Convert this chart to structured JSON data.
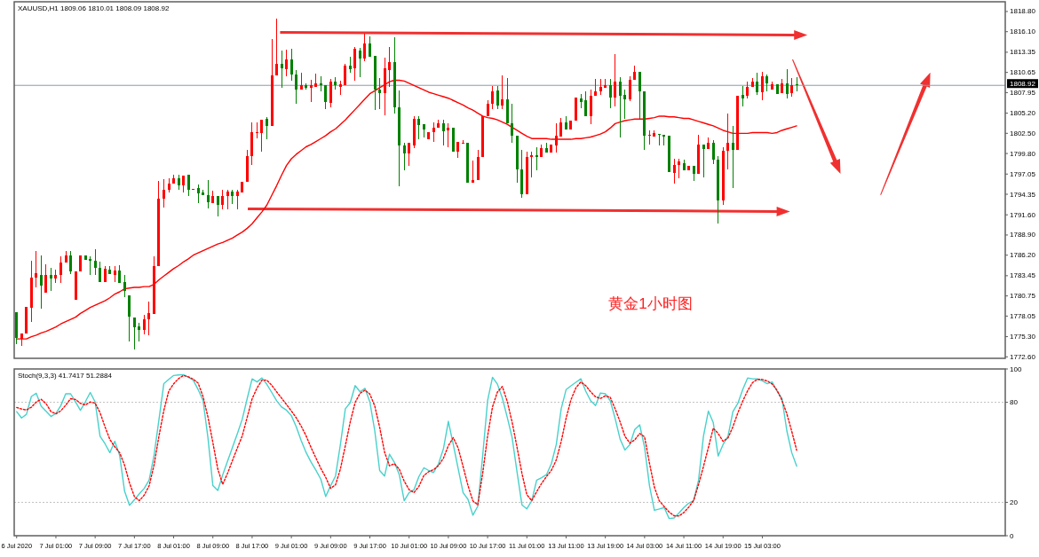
{
  "chart_data": [
    {
      "type": "candlestick",
      "title": "XAUUSD,H1 1809.06 1810.01 1808.09 1808.92",
      "categories": [
        null,
        null,
        null,
        null,
        null,
        null,
        null,
        null,
        null,
        null,
        null,
        null,
        null,
        null,
        null,
        null,
        null,
        null,
        null,
        null,
        null,
        null,
        null,
        null,
        null,
        null,
        null,
        null,
        null,
        null,
        null,
        null,
        null,
        null,
        null,
        null,
        null,
        null,
        null,
        null,
        null,
        null,
        null,
        null,
        null,
        null,
        null,
        null,
        null,
        null,
        null,
        null,
        null,
        null,
        null,
        null,
        null,
        null,
        null,
        null,
        null,
        null,
        null,
        null,
        null,
        null,
        null,
        null,
        null,
        null,
        null,
        null,
        null,
        null,
        null,
        null,
        null,
        null,
        null,
        null,
        null,
        null,
        null,
        null,
        null,
        null,
        null,
        null,
        null,
        null,
        null,
        null,
        null,
        null,
        null,
        null,
        null,
        null,
        null,
        null,
        null,
        null,
        null,
        null,
        null,
        null,
        null,
        null,
        null,
        null,
        null,
        null,
        null,
        null,
        null,
        null,
        null,
        null,
        null,
        null,
        null,
        null,
        null,
        null,
        null,
        null,
        null,
        null,
        null,
        null,
        null,
        null,
        null,
        null,
        null,
        null,
        null,
        null,
        null,
        null,
        null,
        null,
        null,
        null,
        null,
        null,
        null,
        null,
        null,
        null,
        null,
        null,
        null,
        null,
        null,
        null,
        null,
        null,
        null,
        null
      ],
      "ylim": [
        1772.4,
        1820.1
      ],
      "yticks": [
        {
          "value": 1772.6,
          "label": "1772.60"
        },
        {
          "value": 1775.3,
          "label": "1775.30"
        },
        1778.05,
        1780.75,
        1783.45,
        {
          "value": 1786.2,
          "label": "1786.20"
        },
        {
          "value": 1788.9,
          "label": "1788.90"
        },
        {
          "value": 1791.6,
          "label": "1791.60"
        },
        1794.35,
        1797.05,
        {
          "value": 1799.8,
          "label": "1799.80"
        },
        {
          "value": 1802.5,
          "label": "1802.50"
        },
        {
          "value": 1805.2,
          "label": "1805.20"
        },
        1807.95,
        1810.65,
        1813.35,
        {
          "value": 1816.1,
          "label": "1816.10"
        },
        {
          "value": 1818.8,
          "label": "1818.80"
        }
      ],
      "tick_labels": "y",
      "ref_lines": [
        {
          "axis": "y",
          "value": 1808.92,
          "label": "1808.92",
          "color": "#8d9aa8"
        }
      ],
      "annotations": [
        "黄金1小时图"
      ],
      "series": [
        {
          "type": "line",
          "color": "#ff0000",
          "values": [
            1775.0,
            1775.0,
            1775.0,
            1775.3,
            1775.5,
            1775.8,
            1776.0,
            1776.3,
            1776.6,
            1777.0,
            1777.3,
            1777.6,
            1777.9,
            1778.4,
            1778.8,
            1779.2,
            1779.5,
            1779.8,
            1780.1,
            1780.5,
            1781.0,
            1781.3,
            1781.7,
            1781.8,
            1781.9,
            1781.9,
            1782.0,
            1782.0,
            1782.3,
            1782.9,
            1783.4,
            1783.9,
            1784.4,
            1784.8,
            1785.3,
            1785.7,
            1786.2,
            1786.5,
            1786.8,
            1787.1,
            1787.4,
            1787.7,
            1787.9,
            1788.2,
            1788.5,
            1788.9,
            1789.3,
            1789.8,
            1790.4,
            1791.2,
            1792.0,
            1792.9,
            1794.2,
            1795.5,
            1796.9,
            1798.2,
            1799.1,
            1799.7,
            1800.2,
            1800.7,
            1801.0,
            1801.4,
            1801.8,
            1802.2,
            1802.7,
            1803.1,
            1803.7,
            1804.3,
            1805.0,
            1805.7,
            1806.4,
            1807.1,
            1807.8,
            1808.2,
            1808.6,
            1809.0,
            1809.4,
            1809.6,
            1809.6,
            1809.5,
            1809.2,
            1808.9,
            1808.6,
            1808.3,
            1808.0,
            1807.8,
            1807.6,
            1807.4,
            1807.2,
            1806.9,
            1806.6,
            1806.3,
            1805.9,
            1805.6,
            1805.2,
            1804.8,
            1804.6,
            1804.5,
            1804.3,
            1804.0,
            1803.7,
            1803.3,
            1802.9,
            1802.5,
            1802.1,
            1801.8,
            1801.8,
            1801.8,
            1801.8,
            1801.7,
            1801.7,
            1801.7,
            1801.7,
            1801.7,
            1801.8,
            1801.8,
            1801.9,
            1802.0,
            1802.2,
            1802.4,
            1802.7,
            1803.2,
            1803.8,
            1804.0,
            1804.2,
            1804.3,
            1804.4,
            1804.4,
            1804.4,
            1804.5,
            1804.6,
            1804.8,
            1804.8,
            1804.7,
            1804.7,
            1804.6,
            1804.5,
            1804.5,
            1804.3,
            1804.1,
            1803.9,
            1803.7,
            1803.5,
            1803.2,
            1802.9,
            1802.7,
            1802.5,
            1802.5,
            1802.5,
            1802.5,
            1802.6,
            1802.6,
            1802.6,
            1802.6,
            1802.5,
            1802.6,
            1802.9,
            1803.1,
            1803.3,
            1803.5
          ]
        },
        {
          "color": "#ff0000",
          "ohlc": [
            null,
            [
              1775.0,
              1775.7,
              1774.1,
              1775.7
            ],
            [
              1775.7,
              1779.3,
              1775.7,
              1779.3
            ],
            [
              1779.2,
              1785.5,
              1777.3,
              1783.2
            ],
            [
              1783.2,
              1786.8,
              1781.9,
              1783.8
            ],
            null,
            [
              1781.2,
              1785.0,
              1781.2,
              1783.5
            ],
            null,
            [
              1783.1,
              1784.3,
              1782.5,
              1783.5
            ],
            [
              1783.5,
              1786.0,
              1782.5,
              1785.2
            ],
            [
              1785.2,
              1786.8,
              1785.2,
              1786.2
            ],
            null,
            [
              1780.2,
              1784.0,
              1780.2,
              1784.0
            ],
            [
              1784.0,
              1786.2,
              1784.0,
              1786.2
            ],
            null,
            null,
            null,
            null,
            [
              1782.6,
              1784.8,
              1782.6,
              1784.4
            ],
            null,
            [
              1783.6,
              1784.8,
              1782.6,
              1784.2
            ],
            null,
            null,
            null,
            null,
            null,
            [
              1776.2,
              1778.2,
              1775.6,
              1777.6
            ],
            [
              1777.6,
              1780.0,
              1775.5,
              1778.4
            ],
            [
              1778.3,
              1786.1,
              1778.3,
              1784.8
            ],
            [
              1784.8,
              1796.1,
              1784.8,
              1793.8
            ],
            [
              1793.8,
              1796.4,
              1792.6,
              1795.0
            ],
            [
              1795.0,
              1796.5,
              1794.6,
              1795.8
            ],
            [
              1795.8,
              1797.0,
              1795.8,
              1796.5
            ],
            null,
            [
              1795.5,
              1796.9,
              1794.6,
              1796.9
            ],
            null,
            [
              1795.0,
              1795.1,
              1795.0,
              1795.1
            ],
            null,
            null,
            null,
            [
              1793.2,
              1794.8,
              1793.2,
              1794.1
            ],
            null,
            [
              1792.9,
              1795.0,
              1792.3,
              1794.1
            ],
            [
              1794.1,
              1795.0,
              1792.3,
              1794.7
            ],
            null,
            [
              1794.1,
              1795.0,
              1792.3,
              1794.7
            ],
            [
              1794.6,
              1796.0,
              1794.6,
              1796.0
            ],
            [
              1796.0,
              1800.3,
              1796.0,
              1799.4
            ],
            [
              1799.4,
              1804.0,
              1798.3,
              1802.6
            ],
            [
              1802.5,
              1804.0,
              1801.8,
              1802.7
            ],
            [
              1802.5,
              1804.3,
              1800.1,
              1804.3
            ],
            null,
            [
              1803.5,
              1815.1,
              1803.5,
              1810.2
            ],
            [
              1810.2,
              1817.8,
              1810.2,
              1811.8
            ],
            null,
            [
              1811.1,
              1813.7,
              1810.1,
              1812.4
            ],
            null,
            null,
            [
              1808.3,
              1810.6,
              1808.3,
              1809.0
            ],
            null,
            [
              1808.6,
              1809.6,
              1806.7,
              1808.9
            ],
            [
              1808.7,
              1810.5,
              1808.7,
              1809.2
            ],
            null,
            null,
            [
              1806.6,
              1809.8,
              1806.0,
              1809.4
            ],
            null,
            [
              1808.7,
              1809.5,
              1807.7,
              1809.1
            ],
            [
              1809.0,
              1811.8,
              1809.0,
              1811.5
            ],
            null,
            [
              1811.2,
              1814.1,
              1809.5,
              1813.8
            ],
            null,
            [
              1812.5,
              1815.8,
              1812.1,
              1814.5
            ],
            null,
            null,
            null,
            [
              1807.9,
              1812.6,
              1804.9,
              1811.2
            ],
            [
              1811.0,
              1814.1,
              1808.7,
              1812.0
            ],
            null,
            null,
            null,
            [
              1799.8,
              1801.2,
              1798.2,
              1801.2
            ],
            [
              1800.9,
              1804.8,
              1800.5,
              1804.4
            ],
            null,
            null,
            [
              1801.7,
              1802.6,
              1801.7,
              1802.6
            ],
            [
              1802.6,
              1804.0,
              1801.4,
              1803.3
            ],
            [
              1803.2,
              1804.3,
              1803.2,
              1803.8
            ],
            null,
            [
              1802.9,
              1803.8,
              1800.7,
              1803.2
            ],
            null,
            [
              1800.0,
              1801.3,
              1799.2,
              1801.3
            ],
            [
              1801.1,
              1801.6,
              1801.1,
              1801.2
            ],
            null,
            [
              1795.9,
              1798.9,
              1795.9,
              1796.2
            ],
            [
              1796.2,
              1800.3,
              1796.2,
              1799.3
            ],
            [
              1799.3,
              1804.8,
              1799.3,
              1804.8
            ],
            [
              1804.8,
              1806.9,
              1804.8,
              1806.5
            ],
            [
              1806.5,
              1808.8,
              1805.7,
              1808.1
            ],
            null,
            [
              1806.2,
              1810.3,
              1805.8,
              1807.1
            ],
            null,
            null,
            null,
            null,
            [
              1794.3,
              1800.1,
              1794.3,
              1799.3
            ],
            [
              1799.3,
              1800.1,
              1796.6,
              1799.6
            ],
            null,
            [
              1799.3,
              1801.0,
              1799.3,
              1800.5
            ],
            null,
            [
              1799.9,
              1801.0,
              1799.9,
              1801.0
            ],
            [
              1800.9,
              1803.8,
              1799.9,
              1802.2
            ],
            [
              1802.1,
              1804.6,
              1802.1,
              1804.0
            ],
            null,
            [
              1803.0,
              1804.2,
              1803.0,
              1804.2
            ],
            [
              1804.2,
              1807.3,
              1804.2,
              1807.3
            ],
            null,
            null,
            [
              1804.8,
              1808.3,
              1803.7,
              1807.5
            ],
            [
              1807.5,
              1809.8,
              1807.5,
              1808.1
            ],
            [
              1808.1,
              1809.8,
              1807.7,
              1808.7
            ],
            [
              1808.6,
              1809.8,
              1808.6,
              1809.0
            ],
            null,
            [
              1807.3,
              1813.1,
              1806.1,
              1809.4
            ],
            null,
            null,
            [
              1807.1,
              1810.1,
              1806.8,
              1809.6
            ],
            [
              1809.6,
              1811.5,
              1809.6,
              1810.7
            ],
            null,
            null,
            [
              1802.2,
              1802.9,
              1801.0,
              1802.3
            ],
            [
              1802.1,
              1802.9,
              1802.1,
              1802.5
            ],
            null,
            null,
            null,
            [
              1797.2,
              1799.1,
              1795.8,
              1798.3
            ],
            [
              1798.3,
              1799.1,
              1796.5,
              1798.7
            ],
            null,
            [
              1797.5,
              1798.1,
              1797.5,
              1798.1
            ],
            null,
            [
              1797.1,
              1802.3,
              1797.1,
              1801.0
            ],
            null,
            [
              1800.4,
              1802.0,
              1800.4,
              1801.2
            ],
            null,
            null,
            [
              1793.5,
              1800.7,
              1792.9,
              1800.2
            ],
            [
              1800.2,
              1805.1,
              1797.7,
              1801.2
            ],
            null,
            [
              1800.3,
              1807.5,
              1800.3,
              1807.5
            ],
            null,
            [
              1807.5,
              1809.4,
              1807.2,
              1808.7
            ],
            [
              1808.7,
              1809.9,
              1808.7,
              1809.4
            ],
            null,
            [
              1808.0,
              1810.7,
              1806.9,
              1810.1
            ],
            null,
            [
              1808.3,
              1809.4,
              1808.3,
              1809.1
            ],
            null,
            [
              1807.9,
              1809.8,
              1807.9,
              1809.2
            ],
            null,
            [
              1807.9,
              1809.9,
              1807.4,
              1809.0
            ],
            null
          ]
        },
        {
          "color": "#008000",
          "ohlc": [
            [
              1778.6,
              1778.6,
              1774.3,
              1775.1
            ],
            null,
            null,
            null,
            null,
            [
              1783.6,
              1786.2,
              1779.0,
              1782.1
            ],
            null,
            [
              1783.5,
              1784.5,
              1781.4,
              1783.1
            ],
            null,
            null,
            null,
            [
              1786.2,
              1786.7,
              1783.7,
              1784.0
            ],
            null,
            null,
            [
              1786.2,
              1786.2,
              1785.6,
              1785.6
            ],
            [
              1785.7,
              1786.0,
              1783.5,
              1785.5
            ],
            [
              1785.5,
              1787.0,
              1783.5,
              1784.5
            ],
            [
              1784.5,
              1785.3,
              1782.6,
              1782.6
            ],
            null,
            [
              1784.3,
              1784.8,
              1783.7,
              1783.7
            ],
            null,
            [
              1784.2,
              1784.9,
              1782.5,
              1782.5
            ],
            [
              1782.6,
              1783.5,
              1780.6,
              1781.4
            ],
            [
              1780.8,
              1780.8,
              1774.7,
              1778.0
            ],
            [
              1777.9,
              1777.9,
              1773.6,
              1776.6
            ],
            [
              1776.7,
              1777.1,
              1774.6,
              1776.2
            ],
            null,
            null,
            null,
            null,
            null,
            null,
            null,
            [
              1796.5,
              1797.0,
              1795.0,
              1795.5
            ],
            null,
            [
              1797.0,
              1797.0,
              1794.1,
              1795.0
            ],
            null,
            [
              1795.2,
              1795.7,
              1793.2,
              1794.5
            ],
            [
              1794.6,
              1795.0,
              1794.2,
              1794.2
            ],
            [
              1794.2,
              1796.2,
              1792.5,
              1793.3
            ],
            null,
            [
              1794.1,
              1794.1,
              1791.4,
              1792.9
            ],
            null,
            null,
            [
              1794.7,
              1795.0,
              1793.0,
              1794.1
            ],
            null,
            null,
            null,
            null,
            null,
            null,
            [
              1804.4,
              1804.7,
              1801.7,
              1803.5
            ],
            null,
            null,
            [
              1811.8,
              1813.6,
              1808.6,
              1811.2
            ],
            null,
            [
              1812.4,
              1813.8,
              1809.5,
              1810.4
            ],
            [
              1810.4,
              1811.0,
              1806.5,
              1808.3
            ],
            null,
            [
              1808.9,
              1809.2,
              1808.3,
              1808.6
            ],
            null,
            null,
            [
              1809.2,
              1810.1,
              1808.1,
              1809.0
            ],
            [
              1809.0,
              1809.0,
              1805.8,
              1806.7
            ],
            null,
            [
              1809.4,
              1810.0,
              1808.3,
              1808.9
            ],
            null,
            null,
            [
              1811.6,
              1812.8,
              1810.6,
              1811.1
            ],
            null,
            [
              1813.6,
              1813.9,
              1810.0,
              1812.5
            ],
            null,
            [
              1814.5,
              1815.5,
              1812.7,
              1812.7
            ],
            [
              1812.9,
              1812.9,
              1805.6,
              1808.3
            ],
            [
              1808.3,
              1809.9,
              1805.7,
              1807.9
            ],
            null,
            null,
            [
              1812.0,
              1815.3,
              1805.2,
              1806.0
            ],
            [
              1806.0,
              1808.2,
              1795.4,
              1800.9
            ],
            [
              1800.9,
              1801.2,
              1797.5,
              1799.8
            ],
            null,
            null,
            [
              1804.4,
              1804.8,
              1801.7,
              1803.6
            ],
            [
              1803.7,
              1803.7,
              1801.9,
              1803.0
            ],
            null,
            null,
            null,
            [
              1803.8,
              1804.3,
              1800.9,
              1802.8
            ],
            null,
            [
              1803.2,
              1803.2,
              1800.0,
              1800.0
            ],
            null,
            null,
            [
              1801.2,
              1801.2,
              1795.9,
              1795.9
            ],
            null,
            null,
            null,
            null,
            null,
            [
              1808.2,
              1808.8,
              1805.7,
              1806.2
            ],
            null,
            [
              1807.1,
              1809.9,
              1803.8,
              1803.8
            ],
            [
              1803.8,
              1806.4,
              1801.2,
              1802.2
            ],
            [
              1802.2,
              1802.2,
              1795.9,
              1797.7
            ],
            [
              1797.7,
              1800.3,
              1793.9,
              1794.3
            ],
            null,
            null,
            [
              1799.6,
              1800.7,
              1797.5,
              1799.3
            ],
            null,
            [
              1800.5,
              1801.2,
              1799.9,
              1799.9
            ],
            null,
            null,
            null,
            [
              1804.0,
              1804.8,
              1803.0,
              1803.0
            ],
            null,
            null,
            [
              1807.2,
              1807.8,
              1805.9,
              1806.7
            ],
            [
              1806.9,
              1808.1,
              1804.8,
              1804.8
            ],
            null,
            null,
            null,
            null,
            [
              1809.0,
              1809.8,
              1805.9,
              1807.3
            ],
            null,
            [
              1809.4,
              1810.0,
              1801.9,
              1807.5
            ],
            [
              1807.6,
              1808.3,
              1804.4,
              1807.1
            ],
            null,
            null,
            [
              1810.7,
              1810.7,
              1804.4,
              1808.1
            ],
            [
              1808.1,
              1808.1,
              1800.3,
              1802.2
            ],
            null,
            null,
            [
              1802.4,
              1802.4,
              1800.9,
              1802.3
            ],
            [
              1802.3,
              1802.3,
              1800.9,
              1802.1
            ],
            [
              1802.2,
              1802.2,
              1797.3,
              1797.3
            ],
            null,
            null,
            [
              1798.5,
              1799.0,
              1797.5,
              1797.5
            ],
            null,
            [
              1798.2,
              1798.2,
              1796.1,
              1797.1
            ],
            null,
            [
              1801.0,
              1801.0,
              1796.6,
              1800.4
            ],
            null,
            [
              1801.2,
              1801.6,
              1798.4,
              1799.0
            ],
            [
              1799.0,
              1799.5,
              1790.4,
              1793.5
            ],
            null,
            null,
            [
              1801.2,
              1803.5,
              1795.2,
              1800.3
            ],
            null,
            [
              1807.6,
              1808.8,
              1806.1,
              1807.2
            ],
            null,
            null,
            [
              1809.4,
              1810.6,
              1807.7,
              1808.0
            ],
            null,
            [
              1810.1,
              1810.4,
              1808.1,
              1809.2
            ],
            null,
            [
              1809.1,
              1809.1,
              1807.8,
              1807.8
            ],
            null,
            [
              1809.2,
              1811.1,
              1807.2,
              1807.8
            ],
            null,
            [
              1809.06,
              1810.01,
              1808.09,
              1808.92
            ]
          ]
        }
      ]
    },
    {
      "type": "line",
      "title": "Stoch(9,3,3) 41.7417 51.2884",
      "categories": [
        "6 Jul 2020",
        null,
        null,
        null,
        null,
        null,
        null,
        null,
        "7 Jul 01:00",
        null,
        null,
        null,
        null,
        null,
        null,
        null,
        "7 Jul 09:00",
        null,
        null,
        null,
        null,
        null,
        null,
        null,
        "7 Jul 17:00",
        null,
        null,
        null,
        null,
        null,
        null,
        null,
        "8 Jul 01:00",
        null,
        null,
        null,
        null,
        null,
        null,
        null,
        "8 Jul 09:00",
        null,
        null,
        null,
        null,
        null,
        null,
        null,
        "8 Jul 17:00",
        null,
        null,
        null,
        null,
        null,
        null,
        null,
        "9 Jul 01:00",
        null,
        null,
        null,
        null,
        null,
        null,
        null,
        "9 Jul 09:00",
        null,
        null,
        null,
        null,
        null,
        null,
        null,
        "9 Jul 17:00",
        null,
        null,
        null,
        null,
        null,
        null,
        null,
        "10 Jul 01:00",
        null,
        null,
        null,
        null,
        null,
        null,
        null,
        "10 Jul 09:00",
        null,
        null,
        null,
        null,
        null,
        null,
        null,
        "10 Jul 17:00",
        null,
        null,
        null,
        null,
        null,
        null,
        null,
        "11 Jul 01:00",
        null,
        null,
        null,
        null,
        null,
        null,
        null,
        "13 Jul 11:00",
        null,
        null,
        null,
        null,
        null,
        null,
        null,
        "13 Jul 19:00",
        null,
        null,
        null,
        null,
        null,
        null,
        null,
        "14 Jul 03:00",
        null,
        null,
        null,
        null,
        null,
        null,
        null,
        "14 Jul 11:00",
        null,
        null,
        null,
        null,
        null,
        null,
        null,
        "14 Jul 19:00",
        null,
        null,
        null,
        null,
        null,
        null,
        null,
        "15 Jul 03:00",
        null,
        null,
        null,
        null,
        null,
        null,
        null
      ],
      "ylim": [
        0,
        100
      ],
      "yticks": [
        0,
        20,
        80,
        100
      ],
      "ref_lines": [
        {
          "axis": "y",
          "value": 80,
          "color": "#c0c0c0",
          "line_style": "dotted"
        },
        {
          "axis": "y",
          "value": 20,
          "color": "#c0c0c0",
          "line_style": "dotted"
        }
      ],
      "series": [
        {
          "color": "#48d1cc",
          "values": [
            74.4,
            70.6,
            72.8,
            83.5,
            85.4,
            77.7,
            74.6,
            71.5,
            73.4,
            78.0,
            85.1,
            85.1,
            80.2,
            75.2,
            80.3,
            85.9,
            80.2,
            59.6,
            55.2,
            49.8,
            56.7,
            48.1,
            26.7,
            18.2,
            21.5,
            25.1,
            28.4,
            33.3,
            48.1,
            69.5,
            91.2,
            93.7,
            96.1,
            96.4,
            96.6,
            95.0,
            93.3,
            87.6,
            81.0,
            58.6,
            30.0,
            27.1,
            36.5,
            44.8,
            53.0,
            61.3,
            70.0,
            82.3,
            94.1,
            92.2,
            94.6,
            90.8,
            85.9,
            80.9,
            77.2,
            75.3,
            72.0,
            65.3,
            57.1,
            49.9,
            44.2,
            39.3,
            33.9,
            23.5,
            30.0,
            35.8,
            54.9,
            76.1,
            79.8,
            90.0,
            86.3,
            88.4,
            80.2,
            62.9,
            39.1,
            35.8,
            48.9,
            44.0,
            36.6,
            21.0,
            25.9,
            27.6,
            35.5,
            40.7,
            39.1,
            37.9,
            43.2,
            52.2,
            68.6,
            54.7,
            40.2,
            25.9,
            21.8,
            12.3,
            17.7,
            48.1,
            81.0,
            95.0,
            90.9,
            82.6,
            71.1,
            58.8,
            38.2,
            18.5,
            16.1,
            21.0,
            33.3,
            34.8,
            36.6,
            43.2,
            54.7,
            76.1,
            87.6,
            89.9,
            92.0,
            94.1,
            86.7,
            81.0,
            78.0,
            85.6,
            85.1,
            81.0,
            70.3,
            58.0,
            51.4,
            54.7,
            63.7,
            66.5,
            53.0,
            30.0,
            15.2,
            16.0,
            16.9,
            10.3,
            10.6,
            13.6,
            16.9,
            19.5,
            21.0,
            33.3,
            59.6,
            74.7,
            67.8,
            47.8,
            54.7,
            59.6,
            74.4,
            79.3,
            87.6,
            94.6,
            94.1,
            94.0,
            92.9,
            91.2,
            92.2,
            86.7,
            82.4,
            62.9,
            49.8,
            41.7
          ]
        },
        {
          "color": "#ff0000",
          "line_style": "dotted",
          "values": [
            76.9,
            76.0,
            75.4,
            77.1,
            80.2,
            81.8,
            79.2,
            74.4,
            73.1,
            74.9,
            78.3,
            82.2,
            81.7,
            79.4,
            78.4,
            80.2,
            79.5,
            73.8,
            65.4,
            57.7,
            53.3,
            49.8,
            42.3,
            31.7,
            23.5,
            21.0,
            24.3,
            29.9,
            42.3,
            59.6,
            75.1,
            86.7,
            91.1,
            94.2,
            96.1,
            95.3,
            93.9,
            91.5,
            83.4,
            71.1,
            55.8,
            40.0,
            30.8,
            37.5,
            45.2,
            52.7,
            60.0,
            71.1,
            82.1,
            88.6,
            93.3,
            93.3,
            90.2,
            86.3,
            82.5,
            78.7,
            74.8,
            70.7,
            65.7,
            59.9,
            53.0,
            46.6,
            40.4,
            35.0,
            28.4,
            30.5,
            40.1,
            54.0,
            68.2,
            79.9,
            85.4,
            87.3,
            84.9,
            77.8,
            65.0,
            50.1,
            41.9,
            43.2,
            39.9,
            32.7,
            27.6,
            25.9,
            29.6,
            36.1,
            38.4,
            39.6,
            42.1,
            46.5,
            54.0,
            58.8,
            52.6,
            41.5,
            30.1,
            20.9,
            18.5,
            37.5,
            59.8,
            77.3,
            86.2,
            89.5,
            80.6,
            68.1,
            53.0,
            37.4,
            24.6,
            21.0,
            26.4,
            31.3,
            35.5,
            39.2,
            45.4,
            56.5,
            70.4,
            81.6,
            88.7,
            92.2,
            90.0,
            86.3,
            83.3,
            82.3,
            83.9,
            83.0,
            76.1,
            68.4,
            59.6,
            55.5,
            57.5,
            61.3,
            59.3,
            43.4,
            29.1,
            20.9,
            17.5,
            14.2,
            12.0,
            11.8,
            13.9,
            17.1,
            21.2,
            30.7,
            41.5,
            52.8,
            64.5,
            61.3,
            56.6,
            58.6,
            65.3,
            73.6,
            80.7,
            86.9,
            91.8,
            93.8,
            93.7,
            92.8,
            91.0,
            87.2,
            81.3,
            73.1,
            62.6,
            51.3
          ]
        }
      ]
    }
  ]
}
